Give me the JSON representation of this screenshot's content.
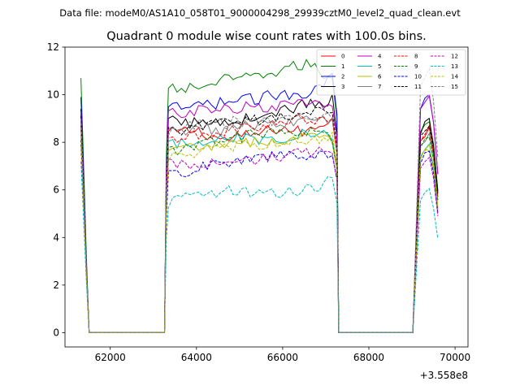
{
  "suptitle": "Data file: modeM0/AS1A10_058T01_9000004298_29939cztM0_level2_quad_clean.evt",
  "chart_data": {
    "type": "line",
    "title": "Quadrant 0 module wise count rates with 100.0s bins.",
    "xlabel": "",
    "ylabel": "",
    "x_offset_label": "+3.558e8",
    "xlim": [
      60950,
      70300
    ],
    "ylim": [
      -0.6,
      12
    ],
    "xticks": [
      62000,
      64000,
      66000,
      68000,
      70000
    ],
    "xtick_labels": [
      "62000",
      "64000",
      "66000",
      "68000",
      "70000"
    ],
    "yticks": [
      0,
      2,
      4,
      6,
      8,
      10,
      12
    ],
    "ytick_labels": [
      "0",
      "2",
      "4",
      "6",
      "8",
      "10",
      "12"
    ],
    "legend_position": "top-right",
    "segments": [
      {
        "start": 61320,
        "end": 61510
      },
      {
        "start": 63260,
        "end": 67300
      },
      {
        "start": 69020,
        "end": 69600
      }
    ],
    "gap_level": 0,
    "series": [
      {
        "name": "0",
        "color": "#ff0000",
        "dash": "solid",
        "values": [
          9.2,
          8.4,
          8.5,
          8.1,
          8.3,
          8.6,
          8.4,
          9.1,
          8.4
        ]
      },
      {
        "name": "1",
        "color": "#008000",
        "dash": "solid",
        "values": [
          10.7,
          10.2,
          10.3,
          10.6,
          10.7,
          11.0,
          11.3,
          10.6,
          8.8
        ]
      },
      {
        "name": "2",
        "color": "#0000ff",
        "dash": "solid",
        "values": [
          9.9,
          9.4,
          9.5,
          9.7,
          9.8,
          10.0,
          10.1,
          10.8,
          9.8
        ]
      },
      {
        "name": "3",
        "color": "#000000",
        "dash": "solid",
        "values": [
          9.4,
          8.9,
          8.8,
          8.9,
          9.0,
          9.3,
          9.6,
          9.8,
          8.7
        ]
      },
      {
        "name": "4",
        "color": "#bf00bf",
        "dash": "solid",
        "values": [
          9.3,
          9.2,
          9.3,
          9.4,
          9.5,
          9.5,
          9.6,
          9.7,
          9.8
        ]
      },
      {
        "name": "5",
        "color": "#00bfbf",
        "dash": "solid",
        "values": [
          8.6,
          7.9,
          8.0,
          8.3,
          8.1,
          8.2,
          8.4,
          8.2,
          7.7
        ]
      },
      {
        "name": "6",
        "color": "#bfbf00",
        "dash": "solid",
        "values": [
          8.3,
          7.5,
          7.9,
          7.8,
          8.0,
          8.1,
          8.2,
          8.0,
          7.6
        ]
      },
      {
        "name": "7",
        "color": "#808080",
        "dash": "solid",
        "values": [
          8.8,
          8.4,
          8.6,
          8.5,
          8.7,
          8.8,
          8.9,
          8.9,
          8.2
        ]
      },
      {
        "name": "8",
        "color": "#ff0000",
        "dash": "dashed",
        "values": [
          9.0,
          8.0,
          8.3,
          8.5,
          8.6,
          8.9,
          9.0,
          8.8,
          8.4
        ]
      },
      {
        "name": "9",
        "color": "#008000",
        "dash": "dashed",
        "values": [
          8.7,
          7.6,
          7.9,
          8.1,
          8.3,
          8.5,
          8.4,
          8.2,
          8.1
        ]
      },
      {
        "name": "10",
        "color": "#0000ff",
        "dash": "dashed",
        "values": [
          8.1,
          6.6,
          6.9,
          7.1,
          7.3,
          7.5,
          7.3,
          7.6,
          7.4
        ]
      },
      {
        "name": "11",
        "color": "#000000",
        "dash": "dashed",
        "values": [
          9.1,
          8.4,
          8.7,
          8.8,
          8.9,
          9.0,
          9.2,
          9.3,
          8.6
        ]
      },
      {
        "name": "12",
        "color": "#bf00bf",
        "dash": "dashed",
        "values": [
          7.9,
          7.1,
          7.0,
          7.3,
          7.2,
          7.4,
          7.6,
          7.5,
          7.2
        ]
      },
      {
        "name": "13",
        "color": "#00bfbf",
        "dash": "dashed",
        "values": [
          7.2,
          5.5,
          5.7,
          6.0,
          5.9,
          5.8,
          6.0,
          6.4,
          5.8
        ]
      },
      {
        "name": "14",
        "color": "#bfbf00",
        "dash": "dashed",
        "values": [
          8.2,
          7.4,
          7.6,
          7.8,
          7.9,
          7.9,
          8.1,
          8.2,
          7.8
        ]
      },
      {
        "name": "15",
        "color": "#808080",
        "dash": "dashed",
        "values": [
          9.0,
          8.5,
          8.7,
          8.9,
          8.8,
          9.0,
          9.1,
          9.2,
          10.8
        ]
      }
    ]
  }
}
